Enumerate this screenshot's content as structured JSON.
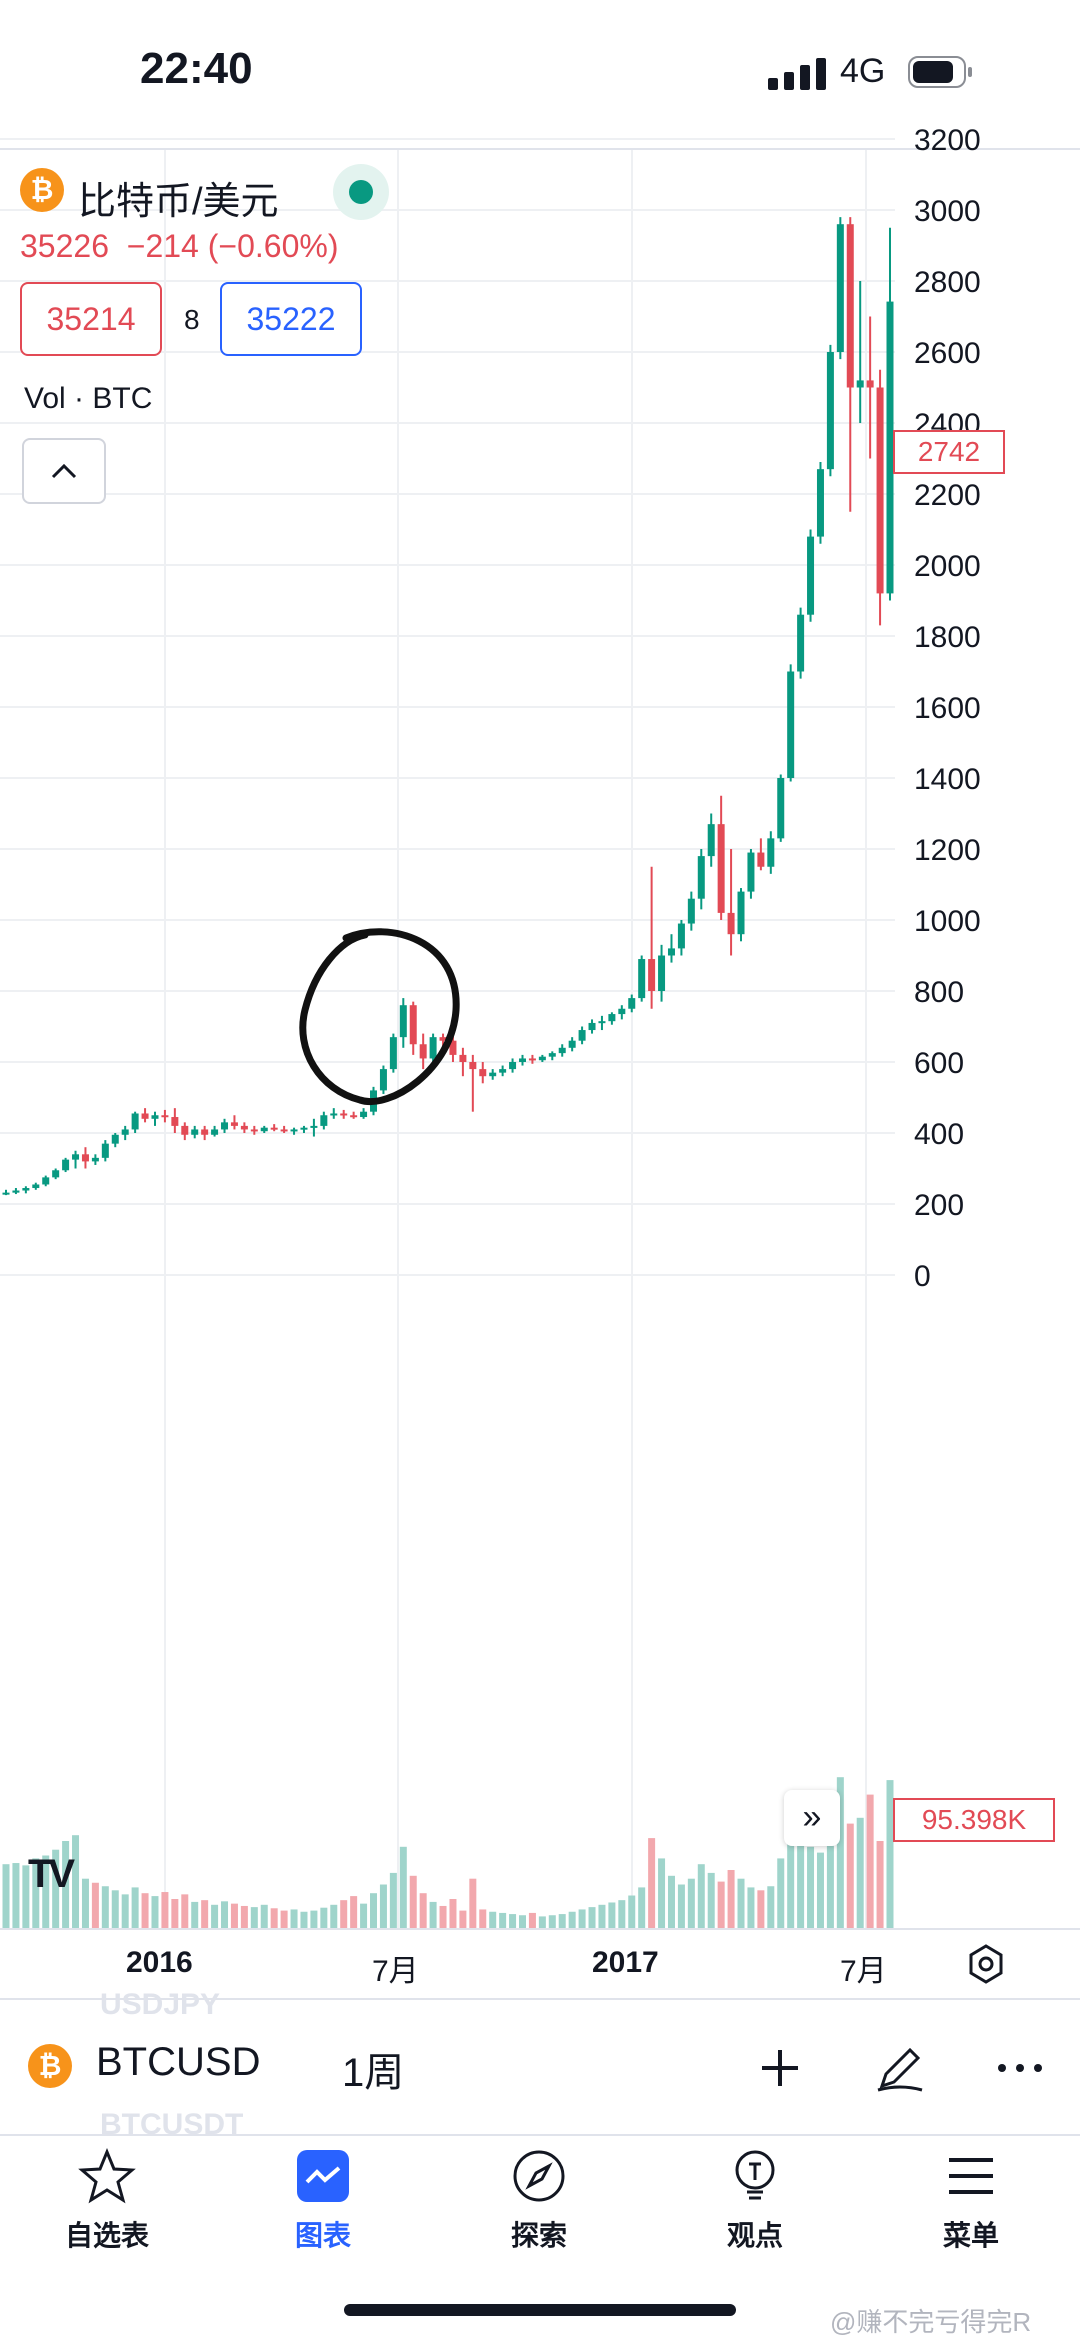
{
  "status_bar": {
    "time": "22:40",
    "network": "4G"
  },
  "symbol": {
    "name": "比特币/美元",
    "coin_glyph": "₿",
    "price_change": "35226  −214 (−0.60%)",
    "sell_price": "35214",
    "spread": "8",
    "buy_price": "35222",
    "volume_label": "Vol · BTC",
    "collapse_glyph": "^"
  },
  "price_axis": {
    "ticks": [
      "3200",
      "3000",
      "2800",
      "2600",
      "2400",
      "2200",
      "2000",
      "1800",
      "1600",
      "1400",
      "1200",
      "1000",
      "800",
      "600",
      "400",
      "200",
      "0"
    ],
    "last_price_tag": "2742",
    "volume_tag": "95.398K"
  },
  "time_axis": {
    "labels": [
      "2016",
      "7月",
      "2017",
      "7月"
    ]
  },
  "jump_glyph": "»",
  "tv_logo": "TV",
  "symbol_bar": {
    "code": "BTCUSD",
    "interval": "1周",
    "ghost_above": "USDJPY",
    "ghost_below": "BTCUSDT"
  },
  "tabs": [
    {
      "label": "自选表",
      "icon": "star-icon"
    },
    {
      "label": "图表",
      "icon": "chart-icon",
      "active": true
    },
    {
      "label": "探索",
      "icon": "compass-icon"
    },
    {
      "label": "观点",
      "icon": "lightbulb-icon"
    },
    {
      "label": "菜单",
      "icon": "menu-icon"
    }
  ],
  "watermark": "@赚不完亏得完R",
  "chart_data": {
    "type": "candlestick",
    "interval": "1W",
    "y_scale": "linear",
    "ylim": [
      0,
      3200
    ],
    "grid": true,
    "candles": [
      [
        230,
        240,
        225,
        232
      ],
      [
        232,
        245,
        228,
        238
      ],
      [
        238,
        250,
        230,
        245
      ],
      [
        245,
        260,
        240,
        255
      ],
      [
        255,
        280,
        250,
        275
      ],
      [
        275,
        300,
        270,
        295
      ],
      [
        295,
        330,
        290,
        325
      ],
      [
        325,
        350,
        300,
        340
      ],
      [
        340,
        360,
        300,
        320
      ],
      [
        320,
        340,
        310,
        330
      ],
      [
        330,
        380,
        320,
        370
      ],
      [
        370,
        400,
        360,
        395
      ],
      [
        395,
        420,
        380,
        410
      ],
      [
        410,
        460,
        400,
        455
      ],
      [
        455,
        470,
        430,
        440
      ],
      [
        440,
        460,
        420,
        450
      ],
      [
        450,
        465,
        430,
        445
      ],
      [
        445,
        470,
        400,
        420
      ],
      [
        420,
        430,
        380,
        395
      ],
      [
        395,
        420,
        385,
        410
      ],
      [
        410,
        420,
        380,
        395
      ],
      [
        395,
        420,
        390,
        410
      ],
      [
        410,
        440,
        400,
        430
      ],
      [
        430,
        450,
        410,
        420
      ],
      [
        420,
        430,
        400,
        410
      ],
      [
        410,
        420,
        395,
        405
      ],
      [
        405,
        420,
        400,
        415
      ],
      [
        415,
        425,
        405,
        410
      ],
      [
        410,
        420,
        400,
        405
      ],
      [
        405,
        415,
        395,
        410
      ],
      [
        410,
        420,
        400,
        415
      ],
      [
        415,
        440,
        390,
        420
      ],
      [
        420,
        460,
        410,
        450
      ],
      [
        450,
        470,
        440,
        455
      ],
      [
        455,
        465,
        440,
        450
      ],
      [
        450,
        460,
        440,
        445
      ],
      [
        445,
        470,
        440,
        460
      ],
      [
        460,
        530,
        450,
        520
      ],
      [
        520,
        590,
        510,
        580
      ],
      [
        580,
        680,
        570,
        670
      ],
      [
        670,
        780,
        640,
        760
      ],
      [
        760,
        770,
        620,
        650
      ],
      [
        650,
        680,
        580,
        610
      ],
      [
        610,
        680,
        600,
        670
      ],
      [
        670,
        680,
        640,
        660
      ],
      [
        660,
        680,
        600,
        620
      ],
      [
        620,
        640,
        560,
        600
      ],
      [
        600,
        620,
        460,
        580
      ],
      [
        580,
        600,
        540,
        560
      ],
      [
        560,
        580,
        550,
        570
      ],
      [
        570,
        590,
        560,
        580
      ],
      [
        580,
        610,
        570,
        600
      ],
      [
        600,
        620,
        590,
        610
      ],
      [
        610,
        620,
        595,
        605
      ],
      [
        605,
        620,
        600,
        615
      ],
      [
        615,
        630,
        605,
        625
      ],
      [
        625,
        650,
        615,
        640
      ],
      [
        640,
        670,
        630,
        660
      ],
      [
        660,
        700,
        650,
        690
      ],
      [
        690,
        720,
        680,
        710
      ],
      [
        710,
        730,
        690,
        715
      ],
      [
        715,
        740,
        705,
        735
      ],
      [
        735,
        760,
        720,
        750
      ],
      [
        750,
        790,
        740,
        780
      ],
      [
        780,
        900,
        770,
        890
      ],
      [
        890,
        1150,
        750,
        800
      ],
      [
        800,
        930,
        770,
        900
      ],
      [
        900,
        960,
        880,
        920
      ],
      [
        920,
        1000,
        900,
        990
      ],
      [
        990,
        1080,
        970,
        1060
      ],
      [
        1060,
        1200,
        1030,
        1180
      ],
      [
        1180,
        1300,
        1150,
        1270
      ],
      [
        1270,
        1350,
        1000,
        1020
      ],
      [
        1020,
        1200,
        900,
        960
      ],
      [
        960,
        1090,
        940,
        1080
      ],
      [
        1080,
        1200,
        1060,
        1190
      ],
      [
        1190,
        1230,
        1140,
        1150
      ],
      [
        1150,
        1250,
        1130,
        1230
      ],
      [
        1230,
        1410,
        1220,
        1400
      ],
      [
        1400,
        1720,
        1390,
        1700
      ],
      [
        1700,
        1880,
        1680,
        1860
      ],
      [
        1860,
        2100,
        1840,
        2080
      ],
      [
        2080,
        2290,
        2060,
        2270
      ],
      [
        2270,
        2620,
        2250,
        2600
      ],
      [
        2600,
        2980,
        2580,
        2960
      ],
      [
        2960,
        2980,
        2150,
        2500
      ],
      [
        2500,
        2800,
        2400,
        2520
      ],
      [
        2520,
        2700,
        2300,
        2500
      ],
      [
        2500,
        2550,
        1830,
        1920
      ],
      [
        1920,
        2950,
        1900,
        2742
      ]
    ],
    "volumes": [
      110,
      112,
      108,
      120,
      125,
      135,
      150,
      160,
      85,
      78,
      72,
      65,
      58,
      70,
      60,
      55,
      62,
      50,
      58,
      45,
      48,
      40,
      46,
      42,
      38,
      36,
      40,
      34,
      30,
      32,
      28,
      30,
      35,
      40,
      48,
      55,
      42,
      60,
      75,
      95,
      140,
      90,
      60,
      45,
      38,
      50,
      30,
      85,
      32,
      28,
      26,
      24,
      22,
      26,
      20,
      22,
      24,
      28,
      32,
      36,
      40,
      44,
      48,
      56,
      70,
      155,
      120,
      90,
      75,
      85,
      110,
      95,
      80,
      100,
      85,
      70,
      65,
      72,
      120,
      160,
      175,
      140,
      130,
      155,
      260,
      180,
      190,
      230,
      150,
      255
    ],
    "volume_up": [
      true,
      true,
      true,
      true,
      true,
      true,
      true,
      true,
      true,
      false,
      true,
      true,
      true,
      true,
      false,
      true,
      false,
      false,
      false,
      true,
      false,
      true,
      true,
      false,
      false,
      true,
      true,
      false,
      false,
      true,
      true,
      true,
      true,
      true,
      false,
      false,
      true,
      true,
      true,
      true,
      true,
      false,
      false,
      true,
      false,
      false,
      false,
      false,
      false,
      true,
      true,
      true,
      true,
      false,
      true,
      true,
      true,
      true,
      true,
      true,
      true,
      true,
      true,
      true,
      true,
      false,
      true,
      true,
      true,
      true,
      true,
      true,
      false,
      false,
      true,
      true,
      false,
      true,
      true,
      true,
      true,
      true,
      true,
      true,
      true,
      false,
      true,
      false,
      false,
      true
    ]
  }
}
